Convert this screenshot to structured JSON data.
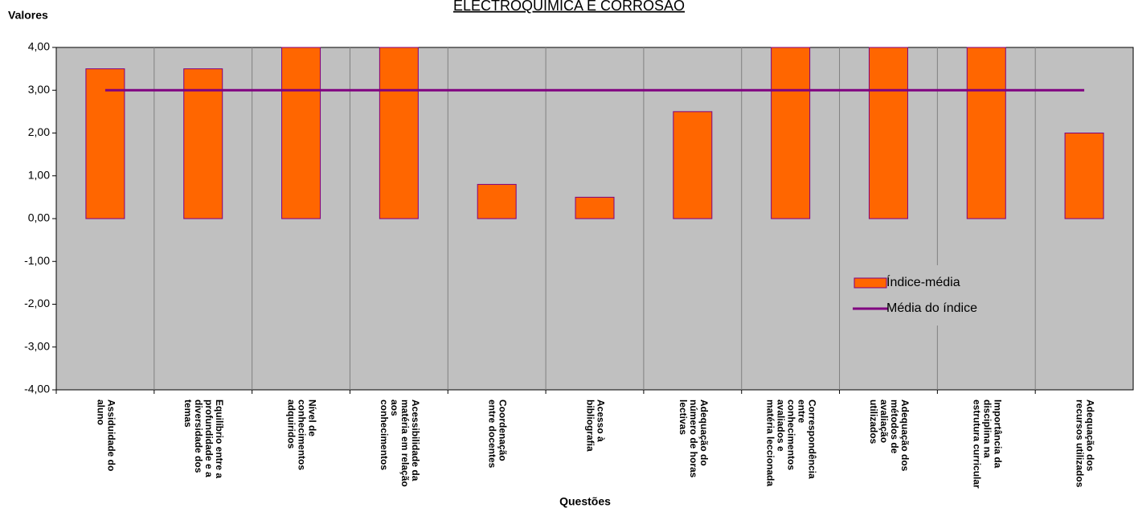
{
  "chart_data": {
    "type": "bar",
    "title": "ELECTROQUÍMICA E CORROSÃO",
    "y_label": "Valores",
    "x_label": "Questões",
    "categories": [
      "Assiduidade do\naluno",
      "Equilíbrio entre a\nprofundidade e a\ndiversidade dos\ntemas",
      "Nível de\nconhecimentos\nadquiridos",
      "Acessibilidade da\nmatéria em relação\naos\nconhecimentos",
      "Coordenação\nentre docentes",
      "Acesso à\nbibliografia",
      "Adequação do\nnúmero de horas\nlectivas",
      "Correspondência\nentre\nconhecimentos\navaliados e\nmatéria leccionada",
      "Adequação dos\nmétodos de\navaliação\nutilizados",
      "Importância da\ndisciplina na\nestrutura curricular",
      "Adequação dos\nrecursos utilizados"
    ],
    "series": [
      {
        "name": "Índice-média",
        "type": "bar",
        "color": "#ff6600",
        "values": [
          3.5,
          3.5,
          4,
          4,
          0.8,
          0.5,
          2.5,
          4,
          4,
          4,
          2
        ]
      },
      {
        "name": "Média do índice",
        "type": "line",
        "color": "#800080",
        "values": [
          3,
          3,
          3,
          3,
          3,
          3,
          3,
          3,
          3,
          3,
          3
        ]
      }
    ],
    "ylim": [
      -4,
      4
    ],
    "yticks": [
      {
        "value": -4,
        "label": "-4,00"
      },
      {
        "value": -3,
        "label": "-3,00"
      },
      {
        "value": -2,
        "label": "-2,00"
      },
      {
        "value": -1,
        "label": "-1,00"
      },
      {
        "value": 0,
        "label": "0,00"
      },
      {
        "value": 1,
        "label": "1,00"
      },
      {
        "value": 2,
        "label": "2,00"
      },
      {
        "value": 3,
        "label": "3,00"
      },
      {
        "value": 4,
        "label": "4,00"
      }
    ],
    "legend": "right"
  }
}
